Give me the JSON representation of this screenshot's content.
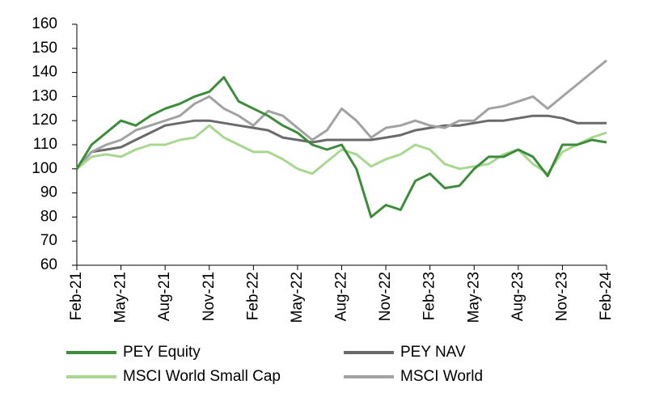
{
  "chart_data": {
    "type": "line",
    "categories": [
      "Feb-21",
      null,
      null,
      "May-21",
      null,
      null,
      "Aug-21",
      null,
      null,
      "Nov-21",
      null,
      null,
      "Feb-22",
      null,
      null,
      "May-22",
      null,
      null,
      "Aug-22",
      null,
      null,
      "Nov-22",
      null,
      null,
      "Feb-23",
      null,
      null,
      "May-23",
      null,
      null,
      "Aug-23",
      null,
      null,
      "Nov-23",
      null,
      null,
      "Feb-24"
    ],
    "series": [
      {
        "name": "PEY Equity",
        "color": "#3c8c3a",
        "values": [
          100,
          110,
          115,
          120,
          118,
          122,
          125,
          127,
          130,
          132,
          138,
          128,
          125,
          122,
          118,
          115,
          110,
          108,
          110,
          100,
          80,
          85,
          83,
          95,
          98,
          92,
          93,
          100,
          105,
          105,
          108,
          105,
          97,
          110,
          110,
          112,
          111
        ]
      },
      {
        "name": "PEY NAV",
        "color": "#6a6a6a",
        "values": [
          100,
          107,
          108,
          109,
          112,
          115,
          118,
          119,
          120,
          120,
          119,
          118,
          117,
          116,
          113,
          112,
          111,
          112,
          112,
          112,
          112,
          113,
          114,
          116,
          117,
          118,
          118,
          119,
          120,
          120,
          121,
          122,
          122,
          121,
          119,
          119,
          119
        ]
      },
      {
        "name": "MSCI World Small Cap",
        "color": "#a8d890",
        "values": [
          100,
          105,
          106,
          105,
          108,
          110,
          110,
          112,
          113,
          118,
          113,
          110,
          107,
          107,
          104,
          100,
          98,
          103,
          108,
          106,
          101,
          104,
          106,
          110,
          108,
          102,
          100,
          101,
          102,
          106,
          108,
          102,
          98,
          107,
          110,
          113,
          115
        ]
      },
      {
        "name": "MSCI World",
        "color": "#a2a2a2",
        "values": [
          100,
          107,
          110,
          112,
          116,
          118,
          120,
          122,
          127,
          130,
          125,
          122,
          118,
          124,
          122,
          117,
          112,
          116,
          125,
          120,
          113,
          117,
          118,
          120,
          118,
          117,
          120,
          120,
          125,
          126,
          128,
          130,
          125,
          130,
          135,
          140,
          145
        ]
      }
    ],
    "ylim": [
      60,
      160
    ],
    "yticks": [
      60,
      70,
      80,
      90,
      100,
      110,
      120,
      130,
      140,
      150,
      160
    ]
  }
}
